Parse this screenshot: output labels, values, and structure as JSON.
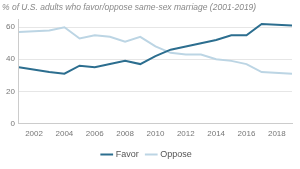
{
  "chart_data": {
    "type": "line",
    "title": "% of U.S. adults who favor/oppose same-sex marriage (2001-2019)",
    "x": [
      2001,
      2003,
      2004,
      2005,
      2006,
      2007,
      2008,
      2009,
      2010,
      2011,
      2012,
      2013,
      2014,
      2015,
      2016,
      2017,
      2019
    ],
    "series": [
      {
        "name": "Favor",
        "color": "#2c6e8f",
        "values": [
          35,
          32,
          31,
          36,
          35,
          37,
          39,
          37,
          42,
          46,
          48,
          50,
          52,
          55,
          55,
          62,
          61
        ]
      },
      {
        "name": "Oppose",
        "color": "#bcd5e4",
        "values": [
          57,
          58,
          60,
          53,
          55,
          54,
          51,
          54,
          48,
          44,
          43,
          43,
          40,
          39,
          37,
          32,
          31
        ]
      }
    ],
    "xlim": [
      2001,
      2019
    ],
    "xticks": [
      2002,
      2004,
      2006,
      2008,
      2010,
      2012,
      2014,
      2016,
      2018
    ],
    "ylim": [
      0,
      65
    ],
    "yticks": [
      0,
      20,
      40,
      60
    ],
    "grid": true,
    "legend": "bottom"
  }
}
